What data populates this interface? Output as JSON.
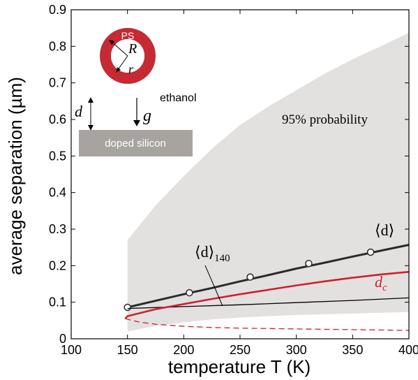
{
  "chart_data": {
    "type": "line",
    "xlabel": "temperature T (K)",
    "ylabel": "average separation (µm)",
    "xlim": [
      100,
      400
    ],
    "ylim": [
      0,
      0.9
    ],
    "xticks": [
      "100",
      "150",
      "200",
      "250",
      "300",
      "350",
      "400"
    ],
    "yticks": [
      "0",
      "0.1",
      "0.2",
      "0.3",
      "0.4",
      "0.5",
      "0.6",
      "0.7",
      "0.8",
      "0.9"
    ],
    "band": {
      "label": "95% probability",
      "color": "#e3e1df",
      "x": [
        150,
        175,
        200,
        225,
        250,
        275,
        300,
        325,
        350,
        375,
        400
      ],
      "upper": [
        0.27,
        0.365,
        0.445,
        0.52,
        0.585,
        0.635,
        0.68,
        0.725,
        0.765,
        0.8,
        0.837
      ],
      "lower": [
        0.02,
        0.035,
        0.045,
        0.053,
        0.058,
        0.062,
        0.065,
        0.067,
        0.069,
        0.071,
        0.073
      ]
    },
    "series": [
      {
        "name": "⟨d⟩",
        "color": "#2b2b2b",
        "x": [
          150,
          175,
          200,
          225,
          250,
          275,
          300,
          325,
          350,
          375,
          400
        ],
        "y": [
          0.086,
          0.104,
          0.122,
          0.139,
          0.157,
          0.174,
          0.192,
          0.208,
          0.225,
          0.241,
          0.257
        ],
        "markers_x": [
          150,
          205,
          259,
          311,
          366
        ],
        "markers_y": [
          0.086,
          0.126,
          0.169,
          0.206,
          0.237
        ]
      },
      {
        "name": "⟨d⟩140",
        "color": "#000000",
        "x": [
          150,
          200,
          250,
          300,
          350,
          400
        ],
        "y": [
          0.083,
          0.088,
          0.093,
          0.099,
          0.105,
          0.112
        ]
      },
      {
        "name": "dc",
        "color": "#d0202f",
        "x": [
          148,
          150,
          175,
          200,
          225,
          250,
          275,
          300,
          325,
          350,
          375,
          400
        ],
        "y": [
          0.055,
          0.062,
          0.081,
          0.095,
          0.109,
          0.122,
          0.134,
          0.146,
          0.157,
          0.167,
          0.176,
          0.183
        ]
      },
      {
        "name": "dc (lower branch)",
        "color": "#d0202f",
        "style": "dashed",
        "x": [
          148,
          160,
          175,
          200,
          225,
          250,
          275,
          300,
          325,
          350,
          375,
          400
        ],
        "y": [
          0.055,
          0.046,
          0.04,
          0.034,
          0.031,
          0.029,
          0.028,
          0.027,
          0.026,
          0.025,
          0.024,
          0.023
        ]
      }
    ],
    "annotations": {
      "band_label": "95% probability",
      "mean_label": "⟨d⟩",
      "mean140_label_main": "⟨d⟩",
      "mean140_label_sub": "140",
      "dc_label_main": "d",
      "dc_label_sub": "c"
    },
    "inset": {
      "sphere_label": "PS",
      "outer_radius_label": "R",
      "inner_radius_label": "r",
      "medium_label": "ethanol",
      "separation_label": "d",
      "gravity_label": "g",
      "substrate_label": "doped silicon",
      "sphere_color": "#c62a33",
      "substrate_color": "#a7a4a0"
    }
  }
}
